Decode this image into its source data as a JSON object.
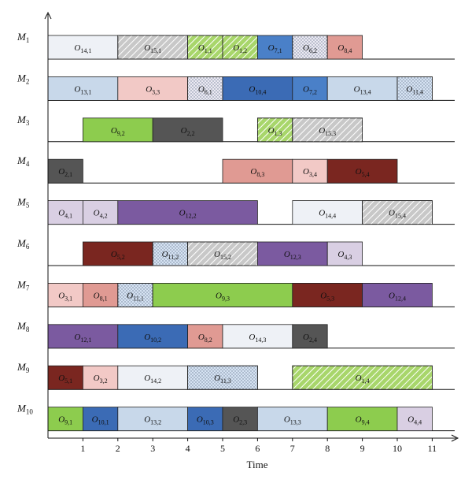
{
  "chart_data": {
    "type": "gantt",
    "xlabel": "Time",
    "xlim": [
      0,
      11
    ],
    "x_ticks": [
      1,
      2,
      3,
      4,
      5,
      6,
      7,
      8,
      9,
      10,
      11
    ],
    "jobs": {
      "1": {
        "color": "#a8d66b",
        "pattern": "hatch"
      },
      "2": {
        "color": "#555555",
        "pattern": "solid"
      },
      "3": {
        "color": "#f2c9c6",
        "pattern": "solid"
      },
      "4": {
        "color": "#d9cfe3",
        "pattern": "solid"
      },
      "5": {
        "color": "#7a2620",
        "pattern": "solid"
      },
      "6": {
        "color": "#eceaf3",
        "pattern": "dots"
      },
      "7": {
        "color": "#4a80c8",
        "pattern": "solid"
      },
      "8": {
        "color": "#e09a93",
        "pattern": "solid"
      },
      "9": {
        "color": "#8dcc4e",
        "pattern": "solid"
      },
      "10": {
        "color": "#3b6bb5",
        "pattern": "solid"
      },
      "11": {
        "color": "#d6e3f3",
        "pattern": "dots"
      },
      "12": {
        "color": "#7b5aa0",
        "pattern": "solid"
      },
      "13": {
        "color": "#c8d8ea",
        "pattern": "solid"
      },
      "14": {
        "color": "#eef1f6",
        "pattern": "solid"
      },
      "15": {
        "color": "#c8c8c8",
        "pattern": "hatch"
      }
    },
    "machines": [
      {
        "name": "M",
        "sub": "1",
        "ops": [
          {
            "job": 14,
            "op": 1,
            "start": 0,
            "end": 2
          },
          {
            "job": 15,
            "op": 1,
            "start": 2,
            "end": 4
          },
          {
            "job": 1,
            "op": 1,
            "start": 4,
            "end": 5
          },
          {
            "job": 1,
            "op": 2,
            "start": 5,
            "end": 6
          },
          {
            "job": 7,
            "op": 1,
            "start": 6,
            "end": 7
          },
          {
            "job": 6,
            "op": 2,
            "start": 7,
            "end": 8
          },
          {
            "job": 8,
            "op": 4,
            "start": 8,
            "end": 9
          }
        ]
      },
      {
        "name": "M",
        "sub": "2",
        "ops": [
          {
            "job": 13,
            "op": 1,
            "start": 0,
            "end": 2
          },
          {
            "job": 3,
            "op": 3,
            "start": 2,
            "end": 4
          },
          {
            "job": 6,
            "op": 1,
            "start": 4,
            "end": 5
          },
          {
            "job": 10,
            "op": 4,
            "start": 5,
            "end": 7
          },
          {
            "job": 7,
            "op": 2,
            "start": 7,
            "end": 8
          },
          {
            "job": 13,
            "op": 4,
            "start": 8,
            "end": 10
          },
          {
            "job": 11,
            "op": 4,
            "start": 10,
            "end": 11
          }
        ]
      },
      {
        "name": "M",
        "sub": "3",
        "ops": [
          {
            "job": 9,
            "op": 2,
            "start": 1,
            "end": 3
          },
          {
            "job": 2,
            "op": 2,
            "start": 3,
            "end": 5
          },
          {
            "job": 1,
            "op": 3,
            "start": 6,
            "end": 7
          },
          {
            "job": 15,
            "op": 3,
            "start": 7,
            "end": 9
          }
        ]
      },
      {
        "name": "M",
        "sub": "4",
        "ops": [
          {
            "job": 2,
            "op": 1,
            "start": 0,
            "end": 1
          },
          {
            "job": 8,
            "op": 3,
            "start": 5,
            "end": 7
          },
          {
            "job": 3,
            "op": 4,
            "start": 7,
            "end": 8
          },
          {
            "job": 5,
            "op": 4,
            "start": 8,
            "end": 10
          }
        ]
      },
      {
        "name": "M",
        "sub": "5",
        "ops": [
          {
            "job": 4,
            "op": 1,
            "start": 0,
            "end": 1
          },
          {
            "job": 4,
            "op": 2,
            "start": 1,
            "end": 2
          },
          {
            "job": 12,
            "op": 2,
            "start": 2,
            "end": 6
          },
          {
            "job": 14,
            "op": 4,
            "start": 7,
            "end": 9
          },
          {
            "job": 15,
            "op": 4,
            "start": 9,
            "end": 11
          }
        ]
      },
      {
        "name": "M",
        "sub": "6",
        "ops": [
          {
            "job": 5,
            "op": 2,
            "start": 1,
            "end": 3
          },
          {
            "job": 11,
            "op": 2,
            "start": 3,
            "end": 4
          },
          {
            "job": 15,
            "op": 2,
            "start": 4,
            "end": 6
          },
          {
            "job": 12,
            "op": 3,
            "start": 6,
            "end": 8
          },
          {
            "job": 4,
            "op": 3,
            "start": 8,
            "end": 9
          }
        ]
      },
      {
        "name": "M",
        "sub": "7",
        "ops": [
          {
            "job": 3,
            "op": 1,
            "start": 0,
            "end": 1
          },
          {
            "job": 8,
            "op": 1,
            "start": 1,
            "end": 2
          },
          {
            "job": 11,
            "op": 1,
            "start": 2,
            "end": 3
          },
          {
            "job": 9,
            "op": 3,
            "start": 3,
            "end": 7
          },
          {
            "job": 5,
            "op": 3,
            "start": 7,
            "end": 9
          },
          {
            "job": 12,
            "op": 4,
            "start": 9,
            "end": 11
          }
        ]
      },
      {
        "name": "M",
        "sub": "8",
        "ops": [
          {
            "job": 12,
            "op": 1,
            "start": 0,
            "end": 2
          },
          {
            "job": 10,
            "op": 2,
            "start": 2,
            "end": 4
          },
          {
            "job": 8,
            "op": 2,
            "start": 4,
            "end": 5
          },
          {
            "job": 14,
            "op": 3,
            "start": 5,
            "end": 7
          },
          {
            "job": 2,
            "op": 4,
            "start": 7,
            "end": 8
          }
        ]
      },
      {
        "name": "M",
        "sub": "9",
        "ops": [
          {
            "job": 5,
            "op": 1,
            "start": 0,
            "end": 1
          },
          {
            "job": 3,
            "op": 2,
            "start": 1,
            "end": 2
          },
          {
            "job": 14,
            "op": 2,
            "start": 2,
            "end": 4
          },
          {
            "job": 11,
            "op": 3,
            "start": 4,
            "end": 6
          },
          {
            "job": 1,
            "op": 4,
            "start": 7,
            "end": 11
          }
        ]
      },
      {
        "name": "M",
        "sub": "10",
        "ops": [
          {
            "job": 9,
            "op": 1,
            "start": 0,
            "end": 1
          },
          {
            "job": 10,
            "op": 1,
            "start": 1,
            "end": 2
          },
          {
            "job": 13,
            "op": 2,
            "start": 2,
            "end": 4
          },
          {
            "job": 10,
            "op": 3,
            "start": 4,
            "end": 5
          },
          {
            "job": 2,
            "op": 3,
            "start": 5,
            "end": 6
          },
          {
            "job": 13,
            "op": 3,
            "start": 6,
            "end": 8
          },
          {
            "job": 9,
            "op": 4,
            "start": 8,
            "end": 10
          },
          {
            "job": 4,
            "op": 4,
            "start": 10,
            "end": 11
          }
        ]
      }
    ]
  }
}
